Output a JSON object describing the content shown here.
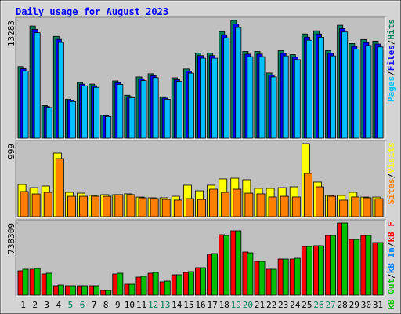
{
  "title": "Daily usage for August 2023",
  "separator": "/",
  "chart_data": [
    {
      "type": "bar",
      "ylim": [
        0,
        13283
      ],
      "yticks": [
        13283
      ],
      "series": [
        {
          "name": "Hits",
          "color": "#00805c",
          "values": [
            8078,
            12655,
            3680,
            11490,
            4398,
            6283,
            6103,
            2603,
            6462,
            4847,
            6911,
            7270,
            4667,
            6821,
            7808,
            9603,
            9603,
            12027,
            13283,
            9783,
            9783,
            7360,
            9873,
            9424,
            11757,
            12116,
            9873,
            12745,
            10680,
            11129,
            10950
          ]
        },
        {
          "name": "Files",
          "color": "#0000ff",
          "values": [
            7836,
            12275,
            3570,
            11145,
            4266,
            6095,
            5920,
            2525,
            6268,
            4702,
            6704,
            7052,
            4527,
            6616,
            7574,
            9315,
            9315,
            11666,
            12885,
            9490,
            9490,
            7139,
            9577,
            9141,
            11404,
            11753,
            9577,
            12363,
            10360,
            10795,
            10622
          ]
        },
        {
          "name": "Pages",
          "color": "#00c0ff",
          "values": [
            7593,
            11896,
            3459,
            10801,
            4134,
            5906,
            5737,
            2447,
            6074,
            4556,
            6496,
            6834,
            4387,
            6412,
            7340,
            9027,
            9027,
            11305,
            12486,
            9196,
            9196,
            6918,
            9281,
            8859,
            11052,
            11389,
            9281,
            11980,
            10039,
            10461,
            10293
          ]
        }
      ]
    },
    {
      "type": "bar",
      "ylim": [
        0,
        999
      ],
      "yticks": [
        999
      ],
      "series": [
        {
          "name": "Visits",
          "color": "#ffff00",
          "values": [
            440,
            397,
            419,
            870,
            333,
            322,
            290,
            301,
            301,
            312,
            268,
            258,
            258,
            279,
            430,
            354,
            430,
            516,
            526,
            505,
            387,
            387,
            397,
            408,
            999,
            473,
            290,
            290,
            333,
            268,
            268
          ]
        },
        {
          "name": "Sites",
          "color": "#ff8000",
          "values": [
            344,
            311,
            333,
            795,
            279,
            279,
            279,
            279,
            301,
            301,
            258,
            247,
            236,
            226,
            247,
            236,
            376,
            333,
            376,
            322,
            312,
            269,
            279,
            269,
            591,
            408,
            279,
            226,
            269,
            258,
            247
          ]
        }
      ]
    },
    {
      "type": "bar",
      "ylim": [
        0,
        738309
      ],
      "yticks": [
        738309
      ],
      "categories": [
        "1",
        "2",
        "3",
        "4",
        "5",
        "6",
        "7",
        "8",
        "9",
        "10",
        "11",
        "12",
        "13",
        "14",
        "15",
        "16",
        "17",
        "18",
        "19",
        "20",
        "21",
        "22",
        "23",
        "24",
        "25",
        "26",
        "27",
        "28",
        "29",
        "30",
        "31"
      ],
      "category_colors": [
        "#000000",
        "#000000",
        "#000000",
        "#000000",
        "#00805c",
        "#00805c",
        "#000000",
        "#000000",
        "#000000",
        "#000000",
        "#000000",
        "#00805c",
        "#00805c",
        "#000000",
        "#000000",
        "#000000",
        "#000000",
        "#000000",
        "#00805c",
        "#00805c",
        "#000000",
        "#000000",
        "#000000",
        "#000000",
        "#000000",
        "#00805c",
        "#00805c",
        "#000000",
        "#000000",
        "#000000",
        "#000000"
      ],
      "series": [
        {
          "name": "kB F",
          "color": "#ff0000",
          "values": [
            248770,
            264825,
            216675,
            96300,
            96300,
            96300,
            96300,
            48150,
            216675,
            112350,
            184575,
            224700,
            136425,
            208650,
            232725,
            280875,
            417300,
            617925,
            658050,
            441375,
            345075,
            264825,
            369150,
            369150,
            497550,
            505575,
            609900,
            738309,
            569775,
            609900,
            537675
          ]
        },
        {
          "name": "kB In",
          "color": "#0080ff",
          "values": [
            0,
            0,
            0,
            0,
            0,
            0,
            0,
            0,
            0,
            0,
            0,
            0,
            0,
            0,
            0,
            0,
            0,
            0,
            0,
            0,
            0,
            0,
            0,
            0,
            0,
            0,
            0,
            0,
            0,
            0,
            0
          ]
        },
        {
          "name": "kB Out",
          "color": "#00c000",
          "values": [
            264825,
            272850,
            224700,
            104325,
            96300,
            96300,
            96300,
            48150,
            224700,
            112350,
            192600,
            232725,
            144450,
            208650,
            240750,
            280875,
            425325,
            609900,
            658050,
            433350,
            345075,
            264825,
            369150,
            377175,
            497550,
            505575,
            609900,
            738309,
            569775,
            609900,
            537675
          ]
        }
      ]
    }
  ]
}
